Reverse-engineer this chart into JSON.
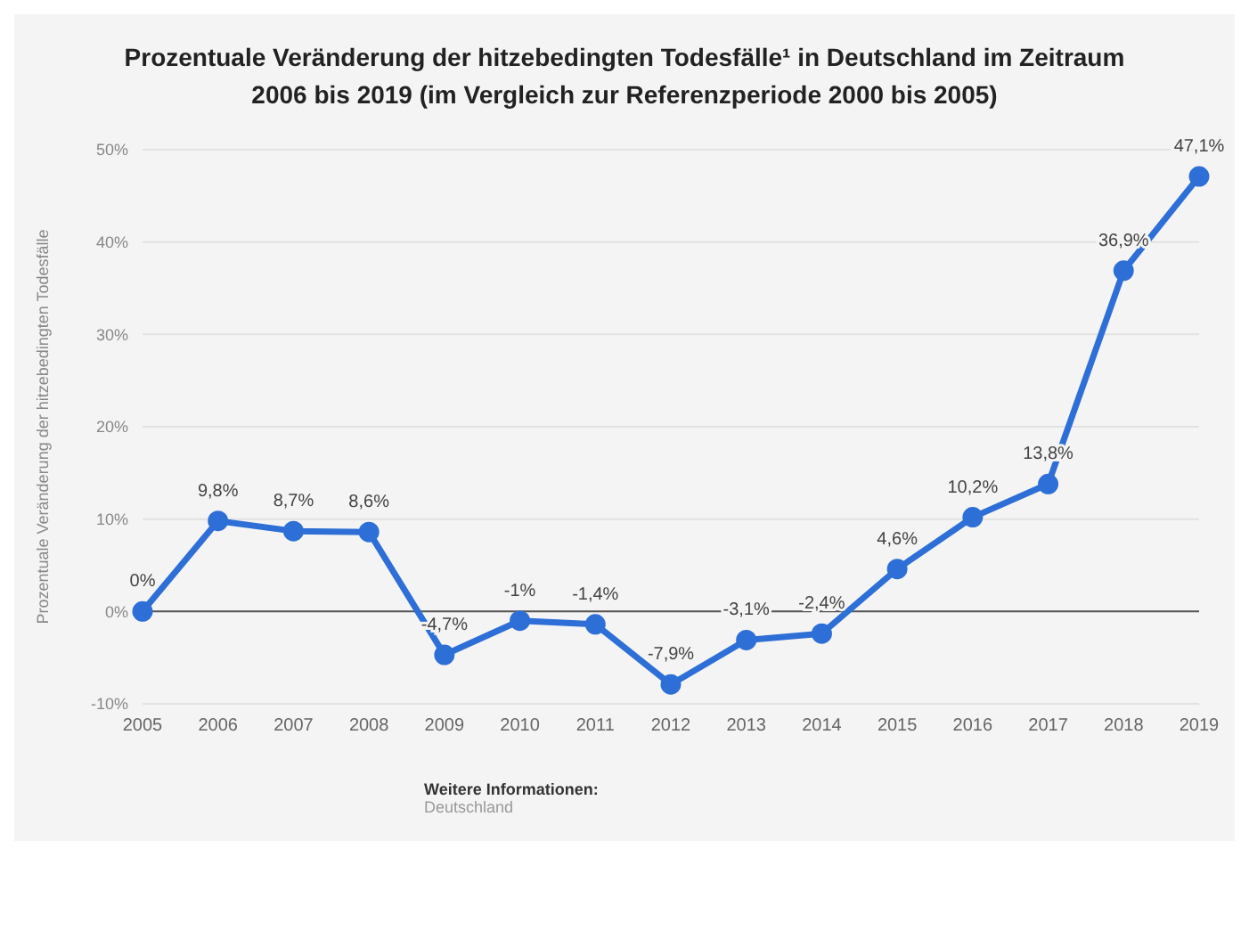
{
  "chart_data": {
    "type": "line",
    "title": "Prozentuale Veränderung der hitzebedingten Todesfälle¹ in Deutschland im Zeitraum 2006 bis 2019 (im Vergleich zur Referenzperiode 2000 bis 2005)",
    "ylabel": "Prozentuale Veränderung der hitzebedingten Todesfälle",
    "categories": [
      "2005",
      "2006",
      "2007",
      "2008",
      "2009",
      "2010",
      "2011",
      "2012",
      "2013",
      "2014",
      "2015",
      "2016",
      "2017",
      "2018",
      "2019"
    ],
    "series": [
      {
        "color": "#2d6fd6",
        "values": [
          0,
          9.8,
          8.7,
          8.6,
          -4.7,
          -1,
          -1.4,
          -7.9,
          -3.1,
          -2.4,
          4.6,
          10.2,
          13.8,
          36.9,
          47.1
        ],
        "value_labels": [
          "0%",
          "9,8%",
          "8,7%",
          "8,6%",
          "-4,7%",
          "-1%",
          "-1,4%",
          "-7,9%",
          "-3,1%",
          "-2,4%",
          "4,6%",
          "10,2%",
          "13,8%",
          "36,9%",
          "47,1%"
        ]
      }
    ],
    "ylim": [
      -10,
      50
    ],
    "yticks": [
      {
        "value": -10,
        "label": "-10%"
      },
      {
        "value": 0,
        "label": "0%"
      },
      {
        "value": 10,
        "label": "10%"
      },
      {
        "value": 20,
        "label": "20%"
      },
      {
        "value": 30,
        "label": "30%"
      },
      {
        "value": 40,
        "label": "40%"
      },
      {
        "value": 50,
        "label": "50%"
      }
    ],
    "grid": "y",
    "marker": "circle",
    "line_style": "solid",
    "ref_lines": [
      {
        "axis": "y",
        "value": 0,
        "color": "#555555"
      }
    ],
    "annotations": [
      "Weitere Informationen:",
      "Deutschland"
    ]
  }
}
